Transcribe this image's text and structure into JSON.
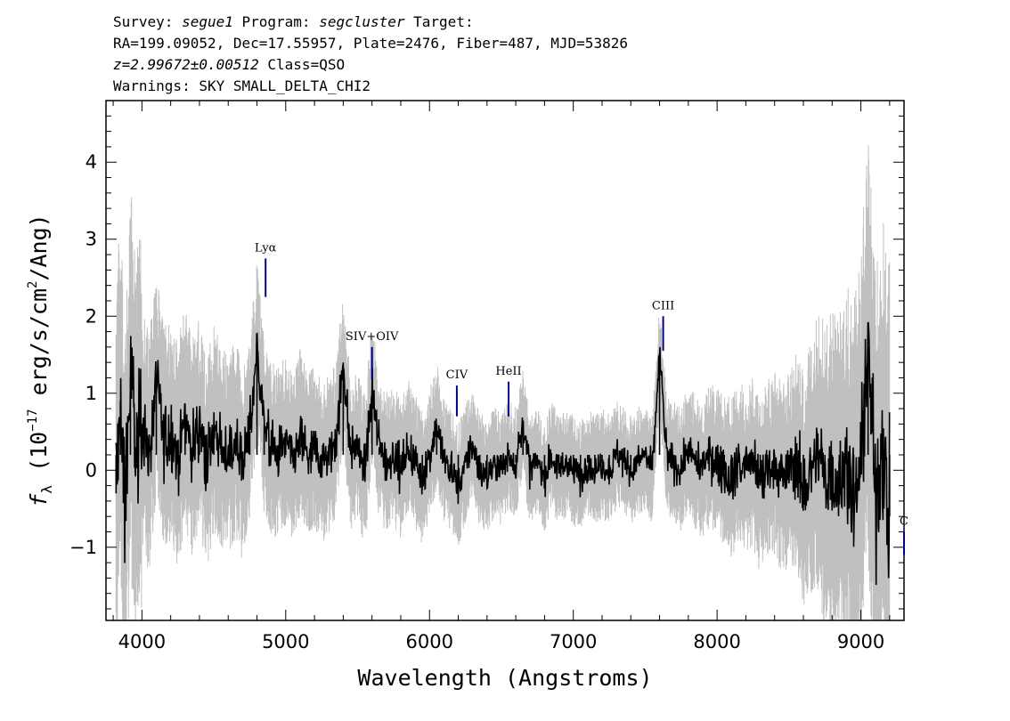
{
  "header": {
    "line1_prefix": "Survey: ",
    "survey": "segue1",
    "line1_mid": " Program: ",
    "program": "segcluster",
    "line1_suffix": " Target:",
    "line2": "RA=199.09052, Dec=17.55957, Plate=2476, Fiber=487, MJD=53826",
    "redshift": "z=2.99672±0.00512",
    "class_text": " Class=QSO",
    "warnings": "Warnings: SKY SMALL_DELTA_CHI2"
  },
  "colors": {
    "flux": "#000000",
    "error_band": "#c0c0c0",
    "line_marker": "#00008b"
  },
  "chart_data": {
    "type": "line",
    "xlabel": "Wavelength (Angstroms)",
    "ylabel_symbol": "f",
    "ylabel_sub": "λ",
    "ylabel_open": " (10",
    "ylabel_exp": "−17",
    "ylabel_mid": " erg/s/cm",
    "ylabel_sq": "2",
    "ylabel_close": "/Ang)",
    "xlim": [
      3750,
      9300
    ],
    "ylim": [
      -1.95,
      4.8
    ],
    "xticks": [
      4000,
      5000,
      6000,
      7000,
      8000,
      9000
    ],
    "xtick_labels": [
      "4000",
      "5000",
      "6000",
      "7000",
      "8000",
      "9000"
    ],
    "yticks": [
      -1,
      0,
      1,
      2,
      3,
      4
    ],
    "ytick_labels": [
      "−1",
      "0",
      "1",
      "2",
      "3",
      "4"
    ],
    "series": [
      {
        "role": "flux",
        "x": [
          3820,
          3850,
          3880,
          3920,
          3960,
          4000,
          4050,
          4100,
          4150,
          4200,
          4250,
          4300,
          4350,
          4400,
          4450,
          4500,
          4550,
          4600,
          4650,
          4700,
          4750,
          4800,
          4850,
          4900,
          4950,
          5000,
          5050,
          5100,
          5150,
          5200,
          5250,
          5300,
          5350,
          5400,
          5450,
          5500,
          5550,
          5600,
          5650,
          5700,
          5750,
          5800,
          5850,
          5900,
          5950,
          6000,
          6050,
          6100,
          6150,
          6200,
          6250,
          6300,
          6350,
          6400,
          6450,
          6500,
          6550,
          6600,
          6650,
          6700,
          6750,
          6800,
          6850,
          6900,
          6950,
          7000,
          7050,
          7100,
          7150,
          7200,
          7250,
          7300,
          7350,
          7400,
          7450,
          7500,
          7550,
          7600,
          7650,
          7700,
          7750,
          7800,
          7850,
          7900,
          7950,
          8000,
          8050,
          8100,
          8150,
          8200,
          8250,
          8300,
          8350,
          8400,
          8450,
          8500,
          8550,
          8600,
          8650,
          8700,
          8750,
          8800,
          8850,
          8900,
          8950,
          9000,
          9050,
          9100,
          9150,
          9200
        ],
        "y": [
          -0.3,
          0.9,
          -0.6,
          1.2,
          0.3,
          0.6,
          0.2,
          1.1,
          0.4,
          0.5,
          0.2,
          0.7,
          0.3,
          0.6,
          0.1,
          0.5,
          0.3,
          0.2,
          0.4,
          0.1,
          0.5,
          1.6,
          0.6,
          0.3,
          0.2,
          0.4,
          0.1,
          0.5,
          0.2,
          0.3,
          0.1,
          0.2,
          0.4,
          1.4,
          0.2,
          0.3,
          0.0,
          1.0,
          0.3,
          0.1,
          0.2,
          0.0,
          0.3,
          0.1,
          -0.1,
          0.2,
          0.6,
          0.1,
          0.0,
          -0.2,
          0.1,
          0.3,
          0.0,
          -0.1,
          0.1,
          0.0,
          0.2,
          0.1,
          0.6,
          0.0,
          0.1,
          -0.1,
          0.2,
          0.0,
          0.1,
          0.0,
          -0.1,
          0.1,
          0.0,
          0.1,
          0.0,
          0.2,
          0.1,
          0.0,
          0.1,
          0.2,
          0.0,
          1.5,
          0.2,
          0.1,
          0.0,
          0.3,
          0.1,
          0.0,
          0.2,
          0.1,
          0.0,
          -0.1,
          0.1,
          0.0,
          0.1,
          -0.2,
          0.0,
          0.1,
          -0.1,
          0.0,
          0.1,
          -0.3,
          0.0,
          0.2,
          -0.1,
          0.0,
          -0.2,
          0.1,
          -0.4,
          0.0,
          1.6,
          -0.3,
          0.2,
          -0.6
        ]
      }
    ],
    "lines": [
      {
        "label": "Lyα",
        "x": 4860,
        "y_bottom": 2.25,
        "y_top": 2.75
      },
      {
        "label": "SIV+OIV",
        "x": 5600,
        "y_bottom": 1.18,
        "y_top": 1.6
      },
      {
        "label": "CIV",
        "x": 6190,
        "y_bottom": 0.7,
        "y_top": 1.1
      },
      {
        "label": "HeII",
        "x": 6550,
        "y_bottom": 0.7,
        "y_top": 1.15
      },
      {
        "label": "CIII",
        "x": 7625,
        "y_bottom": 1.55,
        "y_top": 2.0
      },
      {
        "label": "C",
        "x": 9300,
        "y_bottom": -1.1,
        "y_top": -0.8
      }
    ]
  }
}
